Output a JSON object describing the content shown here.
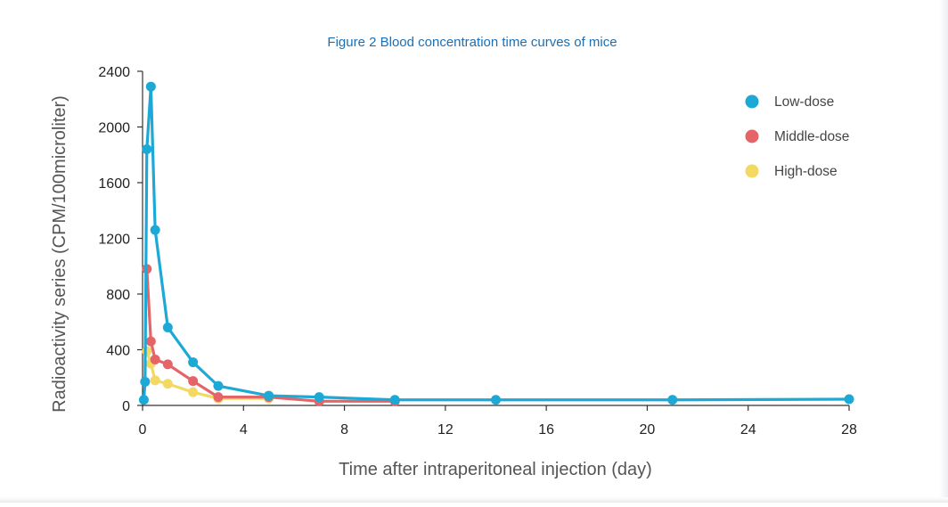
{
  "chart_data": {
    "type": "line",
    "title": "Figure 2  Blood concentration time curves of mice",
    "xlabel": "Time after intraperitoneal injection (day)",
    "ylabel": "Radioactivity series (CPM/100microliter)",
    "xlim": [
      0,
      28
    ],
    "ylim": [
      0,
      2400
    ],
    "xticks": [
      0,
      4,
      8,
      12,
      16,
      20,
      24,
      28
    ],
    "yticks": [
      0,
      400,
      800,
      1200,
      1600,
      2000,
      2400
    ],
    "grid": false,
    "legend_position": "top-right",
    "series": [
      {
        "name": "Low-dose",
        "color": "#1ca9d6",
        "points": [
          [
            0.05,
            40
          ],
          [
            0.1,
            170
          ],
          [
            0.17,
            1840
          ],
          [
            0.33,
            2290
          ],
          [
            0.5,
            1260
          ],
          [
            1,
            560
          ],
          [
            2,
            310
          ],
          [
            3,
            140
          ],
          [
            5,
            70
          ],
          [
            7,
            60
          ],
          [
            10,
            40
          ],
          [
            14,
            40
          ],
          [
            21,
            40
          ],
          [
            28,
            45
          ]
        ]
      },
      {
        "name": "Middle-dose",
        "color": "#e56467",
        "points": [
          [
            0.17,
            980
          ],
          [
            0.33,
            460
          ],
          [
            0.5,
            330
          ],
          [
            1,
            295
          ],
          [
            2,
            175
          ],
          [
            3,
            60
          ],
          [
            5,
            60
          ],
          [
            7,
            30
          ],
          [
            10,
            30
          ]
        ]
      },
      {
        "name": "High-dose",
        "color": "#f3d862",
        "points": [
          [
            0.17,
            390
          ],
          [
            0.33,
            300
          ],
          [
            0.5,
            180
          ],
          [
            1,
            155
          ],
          [
            2,
            95
          ],
          [
            3,
            50
          ],
          [
            5,
            50
          ]
        ]
      }
    ]
  }
}
